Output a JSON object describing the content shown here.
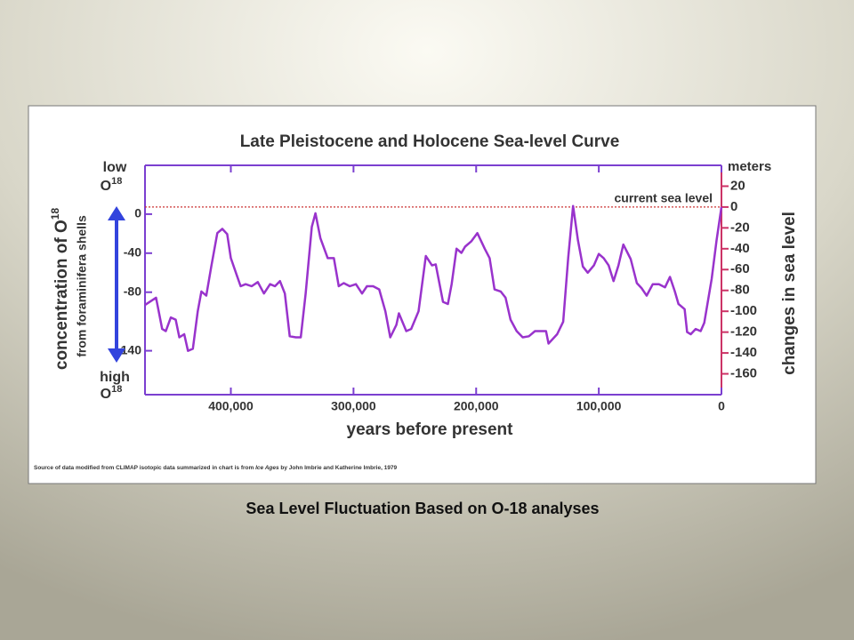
{
  "chart_data": {
    "type": "line",
    "title": "Late Pleistocene and Holocene Sea-level Curve",
    "x_label": "years before present",
    "y_label": "changes in sea level",
    "y_unit": "meters",
    "y2_label": "concentration of O",
    "y2_label_sup": "18",
    "y2_sublabel": "from foraminifera shells",
    "y2_top": {
      "word": "low",
      "symbol": "O",
      "sup": "18"
    },
    "y2_bottom": {
      "word": "high",
      "symbol": "O",
      "sup": "18"
    },
    "reference_line": {
      "value": 0,
      "label": "current sea level",
      "color": "#cc3333"
    },
    "source": [
      "Source of data modified from CLIMAP isotopic data summarized in chart is from ",
      "Ice Ages",
      " by John Imbrie and Katherine Imbrie, 1979"
    ],
    "caption": "Sea Level Fluctuation Based on O-18 analyses",
    "xlim": [
      470000,
      0
    ],
    "xticks": [
      {
        "value": 400000,
        "label": "400,000"
      },
      {
        "value": 300000,
        "label": "300,000"
      },
      {
        "value": 200000,
        "label": "200,000"
      },
      {
        "value": 100000,
        "label": "100,000"
      },
      0
    ],
    "ylim": [
      -180,
      40
    ],
    "yticks": [
      20,
      0,
      -20,
      -40,
      -60,
      -80,
      -100,
      -120,
      -140,
      -160
    ],
    "y2lim": [
      -185,
      50
    ],
    "y2ticks": [
      0,
      -40,
      -80,
      -140
    ],
    "x": [
      470000,
      461000,
      456000,
      453000,
      449000,
      445000,
      442000,
      438000,
      435000,
      431000,
      427000,
      424000,
      420000,
      416000,
      411000,
      407000,
      403000,
      400000,
      395000,
      392000,
      388000,
      383000,
      378000,
      373000,
      368000,
      364000,
      360000,
      356000,
      352000,
      347000,
      343000,
      339000,
      334000,
      331000,
      327000,
      321000,
      316000,
      312000,
      308000,
      303000,
      298000,
      293000,
      289000,
      284000,
      279000,
      274000,
      270000,
      265000,
      263000,
      257000,
      253000,
      247000,
      241000,
      236000,
      233000,
      227000,
      223000,
      220000,
      216000,
      212000,
      209000,
      204000,
      199000,
      193000,
      189000,
      185000,
      180000,
      176000,
      172000,
      167000,
      162000,
      157000,
      152000,
      147000,
      143000,
      141000,
      134000,
      129000,
      125000,
      121000,
      117000,
      113000,
      109000,
      104000,
      100000,
      96000,
      92000,
      88000,
      84000,
      80000,
      74000,
      69000,
      65000,
      61000,
      56000,
      51000,
      46000,
      42000,
      38000,
      35000,
      30000,
      28000,
      25000,
      21000,
      17000,
      14000,
      8000,
      4000,
      0
    ],
    "series": [
      {
        "color": "#9933cc",
        "values": [
          -94,
          -87,
          -117,
          -119,
          -106,
          -108,
          -125,
          -122,
          -138,
          -136,
          -100,
          -81,
          -85,
          -57,
          -25,
          -21,
          -26,
          -49,
          -66,
          -76,
          -74,
          -76,
          -72,
          -83,
          -74,
          -76,
          -71,
          -83,
          -124,
          -125,
          -125,
          -83,
          -19,
          -6,
          -30,
          -49,
          -49,
          -76,
          -73,
          -76,
          -74,
          -83,
          -76,
          -76,
          -79,
          -100,
          -125,
          -113,
          -102,
          -119,
          -117,
          -100,
          -47,
          -56,
          -55,
          -91,
          -93,
          -74,
          -40,
          -44,
          -38,
          -33,
          -25,
          -40,
          -49,
          -79,
          -81,
          -87,
          -108,
          -119,
          -125,
          -124,
          -119,
          -119,
          -119,
          -131,
          -122,
          -110,
          -49,
          1,
          -32,
          -57,
          -63,
          -56,
          -45,
          -49,
          -56,
          -71,
          -56,
          -36,
          -50,
          -73,
          -78,
          -85,
          -74,
          -74,
          -77,
          -67,
          -81,
          -93,
          -98,
          -120,
          -122,
          -117,
          -119,
          -111,
          -69,
          -32,
          0
        ]
      }
    ],
    "axis_color": "#7b3fd0",
    "y_tick_color": "#cc3366",
    "arrow_color": "#3344dd"
  }
}
